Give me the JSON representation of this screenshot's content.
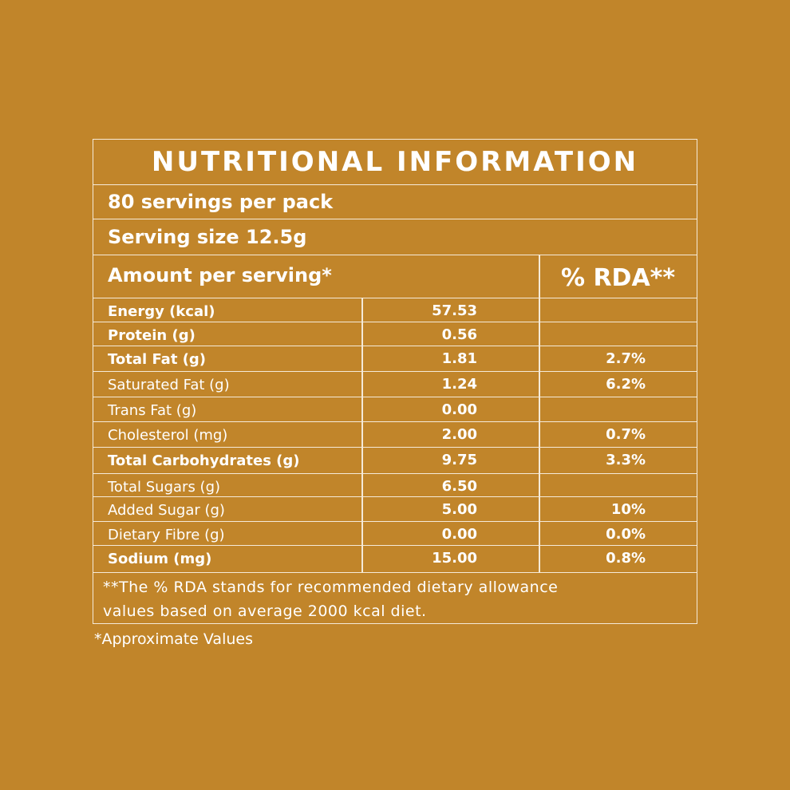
{
  "title": "NUTRITIONAL INFORMATION",
  "servings_per_pack": "80 servings per pack",
  "serving_size": "Serving size 12.5g",
  "amount_header": "Amount per serving*",
  "rda_header": "% RDA**",
  "colors": {
    "background": "#C1852A",
    "text": "#FFFFFF",
    "lines": "#F5EAD8"
  },
  "rows": [
    {
      "label": "Energy (kcal)",
      "value": "57.53",
      "rda": "",
      "bold": true
    },
    {
      "label": "Protein (g)",
      "value": "0.56",
      "rda": "",
      "bold": true
    },
    {
      "label": "Total Fat (g)",
      "value": "1.81",
      "rda": "2.7%",
      "bold": true
    },
    {
      "label": "Saturated Fat (g)",
      "value": "1.24",
      "rda": "6.2%",
      "bold": false
    },
    {
      "label": "Trans Fat (g)",
      "value": "0.00",
      "rda": "",
      "bold": false
    },
    {
      "label": "Cholesterol (mg)",
      "value": "2.00",
      "rda": "0.7%",
      "bold": false
    },
    {
      "label": "Total Carbohydrates (g)",
      "value": "9.75",
      "rda": "3.3%",
      "bold": true
    },
    {
      "label": "Total Sugars (g)",
      "value": "6.50",
      "rda": "",
      "bold": false
    },
    {
      "label": "Added  Sugar (g)",
      "value": "5.00",
      "rda": "10%",
      "bold": false
    },
    {
      "label": "Dietary Fibre (g)",
      "value": "0.00",
      "rda": "0.0%",
      "bold": false
    },
    {
      "label": "Sodium (mg)",
      "value": "15.00",
      "rda": "0.8%",
      "bold": true
    }
  ],
  "footnote_line1": "**The % RDA stands for recommended dietary allowance",
  "footnote_line2": "values based on average 2000 kcal diet.",
  "approx_note": "*Approximate Values"
}
